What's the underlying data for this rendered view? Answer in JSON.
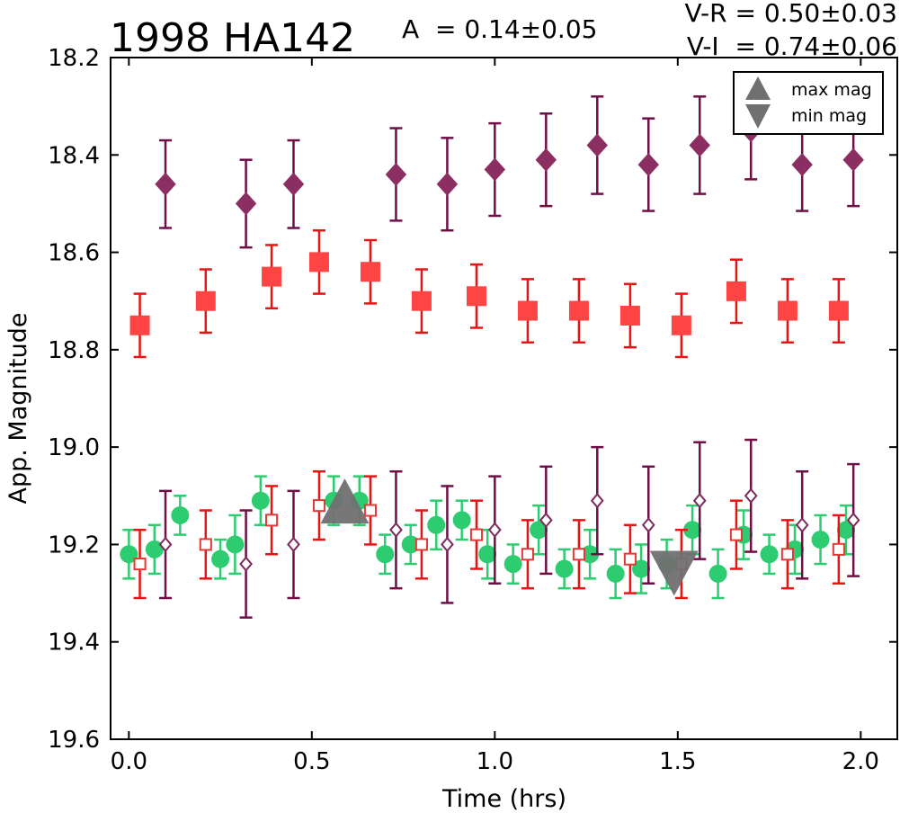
{
  "chart_data": {
    "type": "scatter",
    "title": "1998 HA142",
    "amplitude": "A  = 0.14±0.05",
    "colors_text": [
      "V-R = 0.50±0.03",
      "V-I  = 0.74±0.06"
    ],
    "xlabel": "Time (hrs)",
    "ylabel": "App. Magnitude",
    "xlim": [
      -0.05,
      2.1
    ],
    "ylim": [
      19.6,
      18.2
    ],
    "y_inverted": true,
    "x_ticks": [
      "0.0",
      "0.5",
      "1.0",
      "1.5",
      "2.0"
    ],
    "x_tick_values": [
      0.0,
      0.5,
      1.0,
      1.5,
      2.0
    ],
    "y_ticks": [
      "18.2",
      "18.4",
      "18.6",
      "18.8",
      "19.0",
      "19.2",
      "19.4",
      "19.6"
    ],
    "y_tick_values": [
      18.2,
      18.4,
      18.6,
      18.8,
      19.0,
      19.2,
      19.4,
      19.6
    ],
    "grid": false,
    "legend_position": "top-right",
    "legend": [
      {
        "label": "max mag",
        "marker": "triangle-up"
      },
      {
        "label": "min mag",
        "marker": "triangle-down"
      }
    ],
    "series": [
      {
        "color": "#8B2E62",
        "err_color": "#6E0F45",
        "marker": "diamond",
        "size": 13,
        "x": [
          0.1,
          0.32,
          0.45,
          0.73,
          0.87,
          1.0,
          1.14,
          1.28,
          1.42,
          1.56,
          1.7,
          1.84,
          1.98
        ],
        "y": [
          18.46,
          18.5,
          18.46,
          18.44,
          18.46,
          18.43,
          18.41,
          18.38,
          18.42,
          18.38,
          18.35,
          18.42,
          18.41
        ],
        "err": [
          0.09,
          0.09,
          0.09,
          0.095,
          0.095,
          0.095,
          0.095,
          0.1,
          0.095,
          0.1,
          0.1,
          0.095,
          0.095
        ]
      },
      {
        "color": "#FF4444",
        "err_color": "#E81414",
        "marker": "square",
        "size": 11,
        "x": [
          0.03,
          0.21,
          0.39,
          0.52,
          0.66,
          0.8,
          0.95,
          1.09,
          1.23,
          1.37,
          1.51,
          1.66,
          1.8,
          1.94
        ],
        "y": [
          18.75,
          18.7,
          18.65,
          18.62,
          18.64,
          18.7,
          18.69,
          18.72,
          18.72,
          18.73,
          18.75,
          18.68,
          18.72,
          18.72
        ],
        "err": [
          0.065,
          0.065,
          0.065,
          0.065,
          0.065,
          0.065,
          0.065,
          0.065,
          0.065,
          0.065,
          0.065,
          0.065,
          0.065,
          0.065
        ]
      },
      {
        "color": "#2ECC71",
        "err_color": "#2ECC71",
        "marker": "circle",
        "size": 10,
        "x": [
          0.0,
          0.07,
          0.14,
          0.25,
          0.29,
          0.36,
          0.56,
          0.63,
          0.7,
          0.77,
          0.84,
          0.91,
          0.98,
          1.05,
          1.12,
          1.19,
          1.26,
          1.33,
          1.4,
          1.47,
          1.54,
          1.61,
          1.68,
          1.75,
          1.82,
          1.89,
          1.96
        ],
        "y": [
          19.22,
          19.21,
          19.14,
          19.23,
          19.2,
          19.11,
          19.11,
          19.11,
          19.22,
          19.2,
          19.16,
          19.15,
          19.22,
          19.24,
          19.17,
          19.25,
          19.22,
          19.26,
          19.25,
          19.24,
          19.17,
          19.26,
          19.18,
          19.22,
          19.21,
          19.19,
          19.17
        ],
        "err": [
          0.05,
          0.05,
          0.04,
          0.04,
          0.06,
          0.05,
          0.05,
          0.05,
          0.04,
          0.04,
          0.05,
          0.04,
          0.05,
          0.04,
          0.05,
          0.04,
          0.05,
          0.05,
          0.05,
          0.05,
          0.05,
          0.05,
          0.05,
          0.04,
          0.05,
          0.05,
          0.05
        ]
      },
      {
        "color": "#E53935",
        "err_color": "#E81414",
        "marker": "square-open",
        "size": 11,
        "x": [
          0.03,
          0.21,
          0.39,
          0.52,
          0.66,
          0.8,
          0.95,
          1.09,
          1.23,
          1.37,
          1.51,
          1.66,
          1.8,
          1.94
        ],
        "y": [
          19.24,
          19.2,
          19.15,
          19.12,
          19.13,
          19.2,
          19.18,
          19.22,
          19.22,
          19.23,
          19.24,
          19.18,
          19.22,
          19.21
        ],
        "err": [
          0.07,
          0.07,
          0.07,
          0.07,
          0.07,
          0.07,
          0.07,
          0.07,
          0.07,
          0.07,
          0.07,
          0.07,
          0.07,
          0.07
        ]
      },
      {
        "color": "#7B2A5B",
        "err_color": "#6E0F45",
        "marker": "diamond-open",
        "size": 11,
        "x": [
          0.1,
          0.32,
          0.45,
          0.73,
          0.87,
          1.0,
          1.14,
          1.28,
          1.42,
          1.56,
          1.7,
          1.84,
          1.98
        ],
        "y": [
          19.2,
          19.24,
          19.2,
          19.17,
          19.2,
          19.17,
          19.15,
          19.11,
          19.16,
          19.11,
          19.1,
          19.16,
          19.15
        ],
        "err": [
          0.11,
          0.11,
          0.11,
          0.12,
          0.12,
          0.11,
          0.11,
          0.11,
          0.12,
          0.12,
          0.115,
          0.11,
          0.115
        ]
      }
    ],
    "extrema": [
      {
        "type": "max",
        "x": 0.59,
        "y": 19.12,
        "color": "#707070"
      },
      {
        "type": "min",
        "x": 1.49,
        "y": 19.25,
        "color": "#707070"
      }
    ]
  }
}
